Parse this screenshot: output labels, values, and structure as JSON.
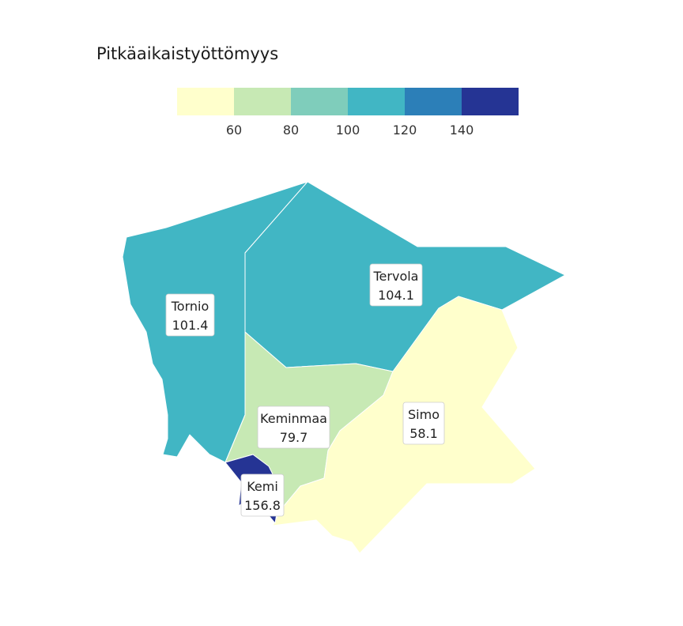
{
  "title": "Pitkäaikaistyöttömyys",
  "legend": {
    "colors": [
      "#ffffcc",
      "#c7e9b4",
      "#7fcdbb",
      "#41b6c4",
      "#2c7fb8",
      "#253494"
    ],
    "ticks": [
      "60",
      "80",
      "100",
      "120",
      "140"
    ]
  },
  "regions": [
    {
      "name": "Tornio",
      "value": "101.4",
      "color": "#41b6c4"
    },
    {
      "name": "Tervola",
      "value": "104.1",
      "color": "#41b6c4"
    },
    {
      "name": "Keminmaa",
      "value": "79.7",
      "color": "#c7e9b4"
    },
    {
      "name": "Simo",
      "value": "58.1",
      "color": "#ffffcc"
    },
    {
      "name": "Kemi",
      "value": "156.8",
      "color": "#253494"
    }
  ]
}
